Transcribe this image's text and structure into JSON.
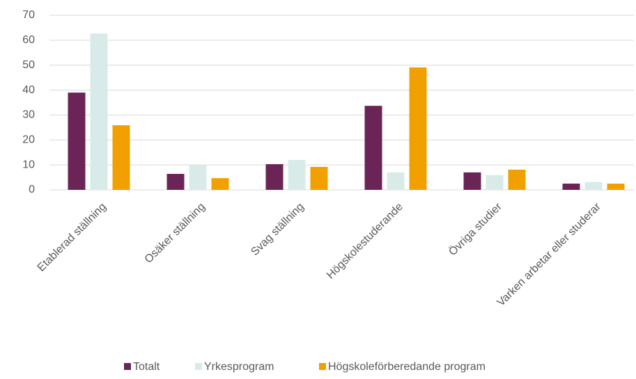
{
  "chart_data": {
    "type": "bar",
    "categories": [
      "Etablerad ställning",
      "Osäker ställning",
      "Svag ställning",
      "Högskolestuderande",
      "Övriga studier",
      "Varken arbetar eller studerar"
    ],
    "series": [
      {
        "name": "Totalt",
        "color": "#6b2456",
        "values": [
          39.0,
          6.4,
          10.3,
          33.7,
          7.0,
          2.5
        ]
      },
      {
        "name": "Yrkesprogram",
        "color": "#d9ebe9",
        "values": [
          62.7,
          10.0,
          12.0,
          7.0,
          5.9,
          3.1
        ]
      },
      {
        "name": "Högskoleförberedande program",
        "color": "#f0a000",
        "values": [
          25.9,
          4.7,
          9.2,
          49.1,
          8.1,
          2.5
        ]
      }
    ],
    "ylim": [
      0,
      70
    ],
    "yticks": [
      0,
      10,
      20,
      30,
      40,
      50,
      60,
      70
    ],
    "grid": true,
    "legend": "bottom"
  }
}
